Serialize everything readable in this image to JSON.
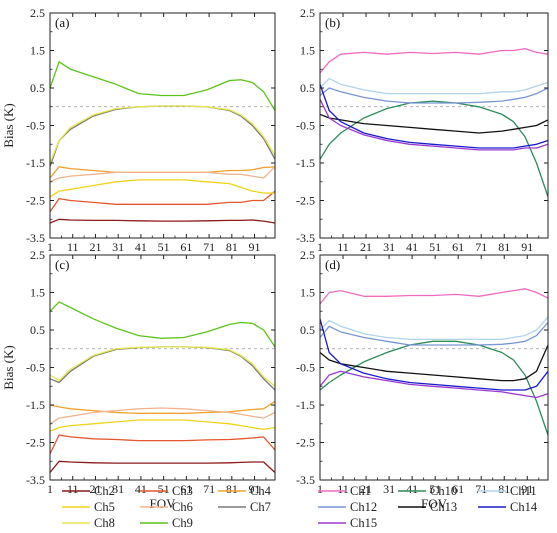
{
  "figure": {
    "background": "#ffffff",
    "axis_color": "#222222",
    "zero_line_color": "#999999"
  },
  "chart_data": [
    {
      "type": "line",
      "panel": "(a)",
      "xlabel": "",
      "ylabel": "Bias (K)",
      "xlim": [
        1,
        100
      ],
      "ylim": [
        -3.5,
        2.5
      ],
      "xticks": [
        1,
        11,
        21,
        31,
        41,
        51,
        61,
        71,
        81,
        91
      ],
      "yticks": [
        -3.5,
        -2.5,
        -1.5,
        -0.5,
        0.5,
        1.5,
        2.5
      ],
      "zero_line": true,
      "x": [
        1,
        5,
        10,
        20,
        30,
        40,
        50,
        60,
        70,
        80,
        85,
        90,
        95,
        100
      ],
      "series": [
        {
          "name": "Ch2",
          "color": "#8b1a1a",
          "values": [
            -3.1,
            -3.0,
            -3.02,
            -3.03,
            -3.03,
            -3.04,
            -3.05,
            -3.05,
            -3.04,
            -3.03,
            -3.03,
            -3.02,
            -3.05,
            -3.1
          ]
        },
        {
          "name": "Ch3",
          "color": "#e4572e",
          "values": [
            -2.8,
            -2.45,
            -2.5,
            -2.55,
            -2.6,
            -2.6,
            -2.6,
            -2.6,
            -2.6,
            -2.55,
            -2.55,
            -2.5,
            -2.5,
            -2.25
          ]
        },
        {
          "name": "Ch4",
          "color": "#f0a030",
          "values": [
            -1.9,
            -1.6,
            -1.65,
            -1.7,
            -1.75,
            -1.75,
            -1.75,
            -1.75,
            -1.75,
            -1.7,
            -1.7,
            -1.68,
            -1.62,
            -1.6
          ]
        },
        {
          "name": "Ch5",
          "color": "#f2d21b",
          "values": [
            -2.4,
            -2.25,
            -2.2,
            -2.1,
            -2.0,
            -1.95,
            -1.95,
            -1.95,
            -2.0,
            -2.05,
            -2.15,
            -2.25,
            -2.3,
            -2.3
          ]
        },
        {
          "name": "Ch6",
          "color": "#f0b490",
          "values": [
            -2.0,
            -1.9,
            -1.85,
            -1.8,
            -1.75,
            -1.75,
            -1.75,
            -1.75,
            -1.75,
            -1.8,
            -1.8,
            -1.85,
            -1.9,
            -1.6
          ]
        },
        {
          "name": "Ch7",
          "color": "#7a7a7a",
          "values": [
            -1.6,
            -0.9,
            -0.6,
            -0.25,
            -0.07,
            0.0,
            0.02,
            0.02,
            0.0,
            -0.1,
            -0.25,
            -0.5,
            -0.85,
            -1.4
          ]
        },
        {
          "name": "Ch8",
          "color": "#e6e650",
          "values": [
            -1.5,
            -0.9,
            -0.55,
            -0.22,
            -0.05,
            0.0,
            0.02,
            0.02,
            0.0,
            -0.08,
            -0.22,
            -0.45,
            -0.8,
            -1.3
          ]
        },
        {
          "name": "Ch9",
          "color": "#5cc41c",
          "values": [
            0.5,
            1.2,
            1.0,
            0.8,
            0.6,
            0.35,
            0.3,
            0.3,
            0.45,
            0.7,
            0.72,
            0.65,
            0.4,
            -0.1
          ]
        }
      ]
    },
    {
      "type": "line",
      "panel": "(b)",
      "xlabel": "",
      "ylabel": "",
      "xlim": [
        1,
        100
      ],
      "ylim": [
        -3.5,
        2.5
      ],
      "xticks": [
        1,
        11,
        21,
        31,
        41,
        51,
        61,
        71,
        81,
        91
      ],
      "yticks": [
        -3.5,
        -2.5,
        -1.5,
        -0.5,
        0.5,
        1.5,
        2.5
      ],
      "zero_line": true,
      "x": [
        1,
        5,
        10,
        20,
        30,
        40,
        50,
        60,
        70,
        80,
        85,
        90,
        95,
        100
      ],
      "series": [
        {
          "name": "Ch1",
          "color": "#f06cc0",
          "values": [
            0.9,
            1.2,
            1.4,
            1.45,
            1.4,
            1.45,
            1.42,
            1.45,
            1.4,
            1.5,
            1.5,
            1.55,
            1.45,
            1.4
          ]
        },
        {
          "name": "Ch10",
          "color": "#2e8b57",
          "values": [
            -1.4,
            -1.0,
            -0.7,
            -0.3,
            -0.05,
            0.1,
            0.15,
            0.1,
            0.0,
            -0.2,
            -0.4,
            -0.8,
            -1.5,
            -2.4
          ]
        },
        {
          "name": "Ch11",
          "color": "#b0d4ea",
          "values": [
            0.5,
            0.75,
            0.6,
            0.45,
            0.35,
            0.35,
            0.35,
            0.35,
            0.35,
            0.4,
            0.4,
            0.45,
            0.55,
            0.65
          ]
        },
        {
          "name": "Ch12",
          "color": "#7896d8",
          "values": [
            0.3,
            0.5,
            0.4,
            0.25,
            0.15,
            0.1,
            0.1,
            0.1,
            0.12,
            0.15,
            0.2,
            0.25,
            0.35,
            0.5
          ]
        },
        {
          "name": "Ch13",
          "color": "#111111",
          "values": [
            -0.2,
            -0.3,
            -0.35,
            -0.45,
            -0.5,
            -0.55,
            -0.6,
            -0.65,
            -0.7,
            -0.65,
            -0.6,
            -0.55,
            -0.5,
            -0.35
          ]
        },
        {
          "name": "Ch14",
          "color": "#1a1acc",
          "values": [
            0.6,
            -0.1,
            -0.4,
            -0.7,
            -0.85,
            -0.95,
            -1.0,
            -1.05,
            -1.1,
            -1.1,
            -1.1,
            -1.05,
            -1.0,
            -0.9
          ]
        },
        {
          "name": "Ch15",
          "color": "#9a3ad0",
          "values": [
            0.2,
            -0.3,
            -0.5,
            -0.75,
            -0.9,
            -1.0,
            -1.05,
            -1.1,
            -1.15,
            -1.15,
            -1.15,
            -1.1,
            -1.1,
            -1.0
          ]
        }
      ]
    },
    {
      "type": "line",
      "panel": "(c)",
      "xlabel": "FOV",
      "ylabel": "Bias (K)",
      "xlim": [
        1,
        100
      ],
      "ylim": [
        -3.5,
        2.5
      ],
      "xticks": [
        1,
        11,
        21,
        31,
        41,
        51,
        61,
        71,
        81,
        91
      ],
      "yticks": [
        -3.5,
        -2.5,
        -1.5,
        -0.5,
        0.5,
        1.5,
        2.5
      ],
      "zero_line": true,
      "x": [
        1,
        5,
        10,
        20,
        30,
        40,
        50,
        60,
        70,
        80,
        85,
        90,
        95,
        100
      ],
      "series": [
        {
          "name": "Ch2",
          "color": "#8b1a1a",
          "values": [
            -3.3,
            -3.0,
            -3.02,
            -3.04,
            -3.05,
            -3.05,
            -3.05,
            -3.05,
            -3.05,
            -3.04,
            -3.03,
            -3.02,
            -3.02,
            -3.3
          ]
        },
        {
          "name": "Ch3",
          "color": "#e4572e",
          "values": [
            -2.8,
            -2.3,
            -2.35,
            -2.4,
            -2.42,
            -2.45,
            -2.45,
            -2.45,
            -2.43,
            -2.42,
            -2.4,
            -2.38,
            -2.35,
            -2.7
          ]
        },
        {
          "name": "Ch4",
          "color": "#f0a030",
          "values": [
            -1.5,
            -1.55,
            -1.6,
            -1.65,
            -1.7,
            -1.72,
            -1.72,
            -1.72,
            -1.7,
            -1.68,
            -1.65,
            -1.62,
            -1.6,
            -1.4
          ]
        },
        {
          "name": "Ch5",
          "color": "#f2d21b",
          "values": [
            -2.2,
            -2.1,
            -2.05,
            -2.0,
            -1.95,
            -1.9,
            -1.9,
            -1.9,
            -1.95,
            -2.0,
            -2.05,
            -2.1,
            -2.15,
            -2.1
          ]
        },
        {
          "name": "Ch6",
          "color": "#f0b490",
          "values": [
            -2.0,
            -1.85,
            -1.8,
            -1.7,
            -1.65,
            -1.6,
            -1.58,
            -1.6,
            -1.65,
            -1.7,
            -1.75,
            -1.8,
            -1.85,
            -1.7
          ]
        },
        {
          "name": "Ch7",
          "color": "#7a7a7a",
          "values": [
            -0.8,
            -0.9,
            -0.6,
            -0.2,
            -0.02,
            0.03,
            0.05,
            0.05,
            0.03,
            -0.05,
            -0.2,
            -0.45,
            -0.8,
            -1.1
          ]
        },
        {
          "name": "Ch8",
          "color": "#e6e650",
          "values": [
            -0.7,
            -0.85,
            -0.55,
            -0.18,
            0.0,
            0.04,
            0.05,
            0.05,
            0.04,
            -0.03,
            -0.18,
            -0.4,
            -0.75,
            -1.0
          ]
        },
        {
          "name": "Ch9",
          "color": "#5cc41c",
          "values": [
            1.0,
            1.25,
            1.1,
            0.8,
            0.55,
            0.35,
            0.28,
            0.3,
            0.45,
            0.65,
            0.7,
            0.68,
            0.5,
            0.05
          ]
        }
      ]
    },
    {
      "type": "line",
      "panel": "(d)",
      "xlabel": "FOV",
      "ylabel": "",
      "xlim": [
        1,
        100
      ],
      "ylim": [
        -3.5,
        2.5
      ],
      "xticks": [
        1,
        11,
        21,
        31,
        41,
        51,
        61,
        71,
        81,
        91
      ],
      "yticks": [
        -3.5,
        -2.5,
        -1.5,
        -0.5,
        0.5,
        1.5,
        2.5
      ],
      "zero_line": true,
      "x": [
        1,
        5,
        10,
        20,
        30,
        40,
        50,
        60,
        70,
        80,
        85,
        90,
        95,
        100
      ],
      "series": [
        {
          "name": "Ch1",
          "color": "#f06cc0",
          "values": [
            1.2,
            1.5,
            1.55,
            1.4,
            1.4,
            1.42,
            1.42,
            1.45,
            1.4,
            1.5,
            1.55,
            1.6,
            1.5,
            1.35
          ]
        },
        {
          "name": "Ch10",
          "color": "#2e8b57",
          "values": [
            -1.1,
            -0.9,
            -0.7,
            -0.35,
            -0.1,
            0.1,
            0.2,
            0.2,
            0.1,
            -0.1,
            -0.3,
            -0.7,
            -1.4,
            -2.3
          ]
        },
        {
          "name": "Ch11",
          "color": "#b0d4ea",
          "values": [
            0.5,
            0.75,
            0.6,
            0.4,
            0.3,
            0.25,
            0.25,
            0.25,
            0.25,
            0.25,
            0.3,
            0.35,
            0.5,
            0.85
          ]
        },
        {
          "name": "Ch12",
          "color": "#7896d8",
          "values": [
            0.3,
            0.6,
            0.45,
            0.3,
            0.2,
            0.1,
            0.1,
            0.1,
            0.1,
            0.12,
            0.15,
            0.2,
            0.35,
            0.7
          ]
        },
        {
          "name": "Ch13",
          "color": "#111111",
          "values": [
            -0.1,
            -0.3,
            -0.4,
            -0.5,
            -0.6,
            -0.65,
            -0.7,
            -0.75,
            -0.8,
            -0.85,
            -0.85,
            -0.8,
            -0.6,
            0.1
          ]
        },
        {
          "name": "Ch14",
          "color": "#1a1acc",
          "values": [
            0.8,
            -0.1,
            -0.4,
            -0.65,
            -0.8,
            -0.9,
            -0.95,
            -1.0,
            -1.05,
            -1.1,
            -1.1,
            -1.1,
            -1.0,
            -0.6
          ]
        },
        {
          "name": "Ch15",
          "color": "#9a3ad0",
          "values": [
            -1.0,
            -0.7,
            -0.6,
            -0.75,
            -0.85,
            -0.95,
            -1.0,
            -1.05,
            -1.1,
            -1.15,
            -1.2,
            -1.25,
            -1.3,
            -1.2
          ]
        }
      ]
    }
  ],
  "legends": {
    "left": [
      "Ch2",
      "Ch3",
      "Ch4",
      "Ch5",
      "Ch6",
      "Ch7",
      "Ch8",
      "Ch9"
    ],
    "right": [
      "Ch1",
      "Ch10",
      "Ch11",
      "Ch12",
      "Ch13",
      "Ch14",
      "Ch15"
    ]
  }
}
